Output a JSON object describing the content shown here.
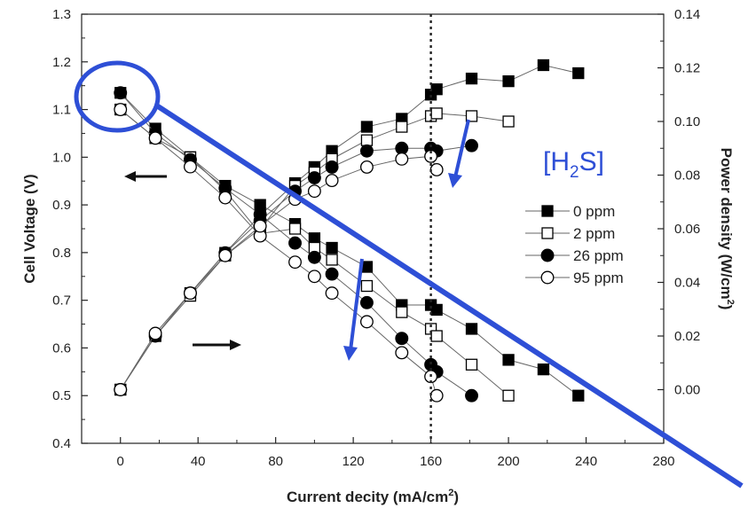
{
  "chart_data": {
    "type": "scatter",
    "title": "",
    "xlabel": "Current decity (mA/cm",
    "xlabel_sup": "2",
    "xlabel_tail": ")",
    "ylabel_left": "Cell Voltage (V)",
    "ylabel_right": "Power density (W/cm",
    "ylabel_right_sup": "2",
    "ylabel_right_tail": ")",
    "xlim": [
      -20,
      280
    ],
    "ylim_left": [
      0.4,
      1.3
    ],
    "ylim_right": [
      -0.02,
      0.14
    ],
    "x_ticks": [
      0,
      40,
      80,
      120,
      160,
      200,
      240,
      280
    ],
    "x_tick_labels": [
      "0",
      "40",
      "80",
      "120",
      "160",
      "200",
      "240",
      "280"
    ],
    "y_left_ticks": [
      0.4,
      0.5,
      0.6,
      0.7,
      0.8,
      0.9,
      1.0,
      1.1,
      1.2,
      1.3
    ],
    "y_left_tick_labels": [
      "0.4",
      "0.5",
      "0.6",
      "0.7",
      "0.8",
      "0.9",
      "1.0",
      "1.1",
      "1.2",
      "1.3"
    ],
    "y_right_ticks": [
      0.0,
      0.02,
      0.04,
      0.06,
      0.08,
      0.1,
      0.12,
      0.14
    ],
    "y_right_tick_labels": [
      "0.00",
      "0.02",
      "0.04",
      "0.06",
      "0.08",
      "0.10",
      "0.12",
      "0.14"
    ],
    "grid": false,
    "legend_position": "right-center",
    "vertical_line_x": 160,
    "series": [
      {
        "name": "0 ppm",
        "marker": "filled-square",
        "voltage_x": [
          0,
          18,
          36,
          54,
          72,
          90,
          100,
          109,
          127,
          145,
          160,
          163,
          181,
          200,
          218,
          236
        ],
        "voltage_y": [
          1.135,
          1.06,
          1.0,
          0.94,
          0.9,
          0.86,
          0.83,
          0.81,
          0.77,
          0.69,
          0.69,
          0.68,
          0.64,
          0.575,
          0.555,
          0.5
        ],
        "power_x": [
          0,
          18,
          36,
          54,
          72,
          90,
          100,
          109,
          127,
          145,
          160,
          163,
          181,
          200,
          218,
          236
        ],
        "power_y": [
          0.0,
          0.02,
          0.036,
          0.051,
          0.065,
          0.077,
          0.083,
          0.089,
          0.098,
          0.101,
          0.11,
          0.112,
          0.116,
          0.115,
          0.121,
          0.118
        ]
      },
      {
        "name": "2 ppm",
        "marker": "open-square",
        "voltage_x": [
          0,
          18,
          36,
          54,
          72,
          90,
          100,
          109,
          127,
          145,
          160,
          163,
          181,
          200
        ],
        "voltage_y": [
          1.1,
          1.04,
          1.0,
          0.93,
          0.84,
          0.85,
          0.81,
          0.785,
          0.73,
          0.675,
          0.64,
          0.625,
          0.565,
          0.5
        ],
        "power_x": [
          0,
          18,
          36,
          54,
          72,
          90,
          100,
          109,
          127,
          145,
          160,
          163,
          181,
          200
        ],
        "power_y": [
          0.0,
          0.02,
          0.035,
          0.05,
          0.06,
          0.076,
          0.081,
          0.086,
          0.093,
          0.098,
          0.102,
          0.103,
          0.102,
          0.1
        ]
      },
      {
        "name": "26 ppm",
        "marker": "filled-circle",
        "voltage_x": [
          0,
          18,
          36,
          54,
          72,
          90,
          100,
          109,
          127,
          145,
          160,
          163,
          181
        ],
        "voltage_y": [
          1.135,
          1.05,
          0.995,
          0.935,
          0.88,
          0.82,
          0.79,
          0.755,
          0.695,
          0.62,
          0.565,
          0.55,
          0.5
        ],
        "power_x": [
          0,
          18,
          36,
          54,
          72,
          90,
          100,
          109,
          127,
          145,
          160,
          163,
          181
        ],
        "power_y": [
          0.0,
          0.02,
          0.036,
          0.051,
          0.063,
          0.074,
          0.079,
          0.083,
          0.089,
          0.09,
          0.09,
          0.089,
          0.091
        ]
      },
      {
        "name": "95 ppm",
        "marker": "open-circle",
        "voltage_x": [
          0,
          18,
          36,
          54,
          72,
          90,
          100,
          109,
          127,
          145,
          160,
          163
        ],
        "voltage_y": [
          1.1,
          1.04,
          0.98,
          0.915,
          0.835,
          0.78,
          0.75,
          0.715,
          0.655,
          0.59,
          0.54,
          0.5
        ],
        "power_x": [
          0,
          18,
          36,
          54,
          72,
          90,
          100,
          109,
          127,
          145,
          160,
          163
        ],
        "power_y": [
          0.0,
          0.021,
          0.036,
          0.05,
          0.061,
          0.071,
          0.074,
          0.078,
          0.083,
          0.086,
          0.087,
          0.082
        ]
      }
    ],
    "annotations": {
      "h2s_label": "[H",
      "h2s_sub": "2",
      "h2s_tail": "S]"
    }
  },
  "colors": {
    "axis": "#222222",
    "marker": "#000000",
    "line": "#666666",
    "annotation": "#2e4fd6"
  }
}
